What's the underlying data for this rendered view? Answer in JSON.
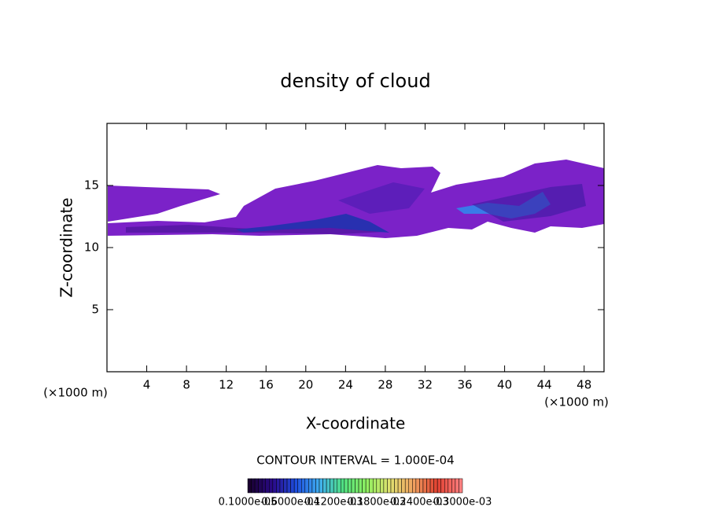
{
  "chart_data": {
    "type": "contour",
    "title": "density of cloud",
    "x_label": "X-coordinate",
    "y_label": "Z-coordinate",
    "x_unit": "(×1000 m)",
    "y_unit": "(×1000 m)",
    "xlim": [
      0,
      50
    ],
    "ylim": [
      0,
      20
    ],
    "xticks": [
      4,
      8,
      12,
      16,
      20,
      24,
      28,
      32,
      36,
      40,
      44,
      48
    ],
    "yticks": [
      5,
      10,
      15
    ],
    "contour_note": "CONTOUR INTERVAL = 1.000E-04",
    "colorbar": {
      "labels": [
        "0.1000e-05",
        "0.6000e-04",
        "0.1200e-03",
        "0.1800e-03",
        "0.2400e-03",
        "0.3000e-03"
      ],
      "colors": [
        "#1a0030",
        "#2a0a8a",
        "#1e50e0",
        "#40b0f0",
        "#50e080",
        "#90f060",
        "#e0e070",
        "#f0a060",
        "#e04030",
        "#ff8080"
      ]
    }
  }
}
